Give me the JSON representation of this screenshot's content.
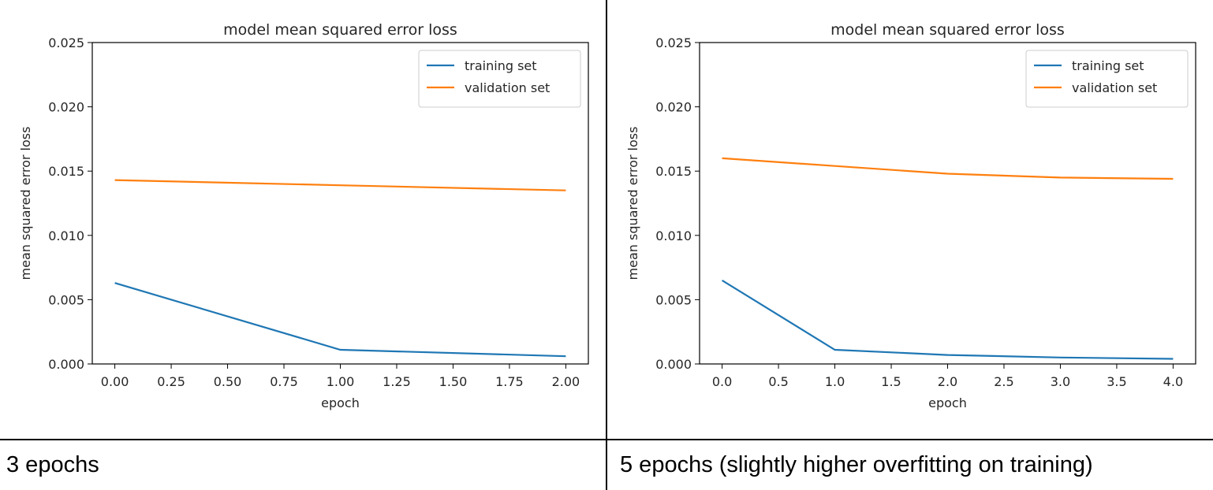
{
  "captions": [
    "3 epochs",
    "5 epochs (slightly higher overfitting on training)"
  ],
  "chart_data": [
    {
      "type": "line",
      "title": "model mean squared error loss",
      "xlabel": "epoch",
      "ylabel": "mean squared error loss",
      "xlim": [
        -0.1,
        2.1
      ],
      "ylim": [
        0,
        0.025
      ],
      "xticks": [
        0,
        0.25,
        0.5,
        0.75,
        1,
        1.25,
        1.5,
        1.75,
        2
      ],
      "xtick_labels": [
        "0.00",
        "0.25",
        "0.50",
        "0.75",
        "1.00",
        "1.25",
        "1.50",
        "1.75",
        "2.00"
      ],
      "yticks": [
        0,
        0.005,
        0.01,
        0.015,
        0.02,
        0.025
      ],
      "ytick_labels": [
        "0.000",
        "0.005",
        "0.010",
        "0.015",
        "0.020",
        "0.025"
      ],
      "grid": false,
      "legend": "top-right",
      "x": [
        0,
        1,
        2
      ],
      "series": [
        {
          "name": "training set",
          "color": "#1f77b4",
          "values": [
            0.0063,
            0.0011,
            0.0006
          ]
        },
        {
          "name": "validation set",
          "color": "#ff7f0e",
          "values": [
            0.0143,
            0.0139,
            0.0135
          ]
        }
      ]
    },
    {
      "type": "line",
      "title": "model mean squared error loss",
      "xlabel": "epoch",
      "ylabel": "mean squared error loss",
      "xlim": [
        -0.2,
        4.2
      ],
      "ylim": [
        0,
        0.025
      ],
      "xticks": [
        0,
        0.5,
        1,
        1.5,
        2,
        2.5,
        3,
        3.5,
        4
      ],
      "xtick_labels": [
        "0.0",
        "0.5",
        "1.0",
        "1.5",
        "2.0",
        "2.5",
        "3.0",
        "3.5",
        "4.0"
      ],
      "yticks": [
        0,
        0.005,
        0.01,
        0.015,
        0.02,
        0.025
      ],
      "ytick_labels": [
        "0.000",
        "0.005",
        "0.010",
        "0.015",
        "0.020",
        "0.025"
      ],
      "grid": false,
      "legend": "top-right",
      "x": [
        0,
        1,
        2,
        3,
        4
      ],
      "series": [
        {
          "name": "training set",
          "color": "#1f77b4",
          "values": [
            0.0065,
            0.0011,
            0.0007,
            0.0005,
            0.0004
          ]
        },
        {
          "name": "validation set",
          "color": "#ff7f0e",
          "values": [
            0.016,
            0.0154,
            0.0148,
            0.0145,
            0.0144
          ]
        }
      ]
    }
  ]
}
